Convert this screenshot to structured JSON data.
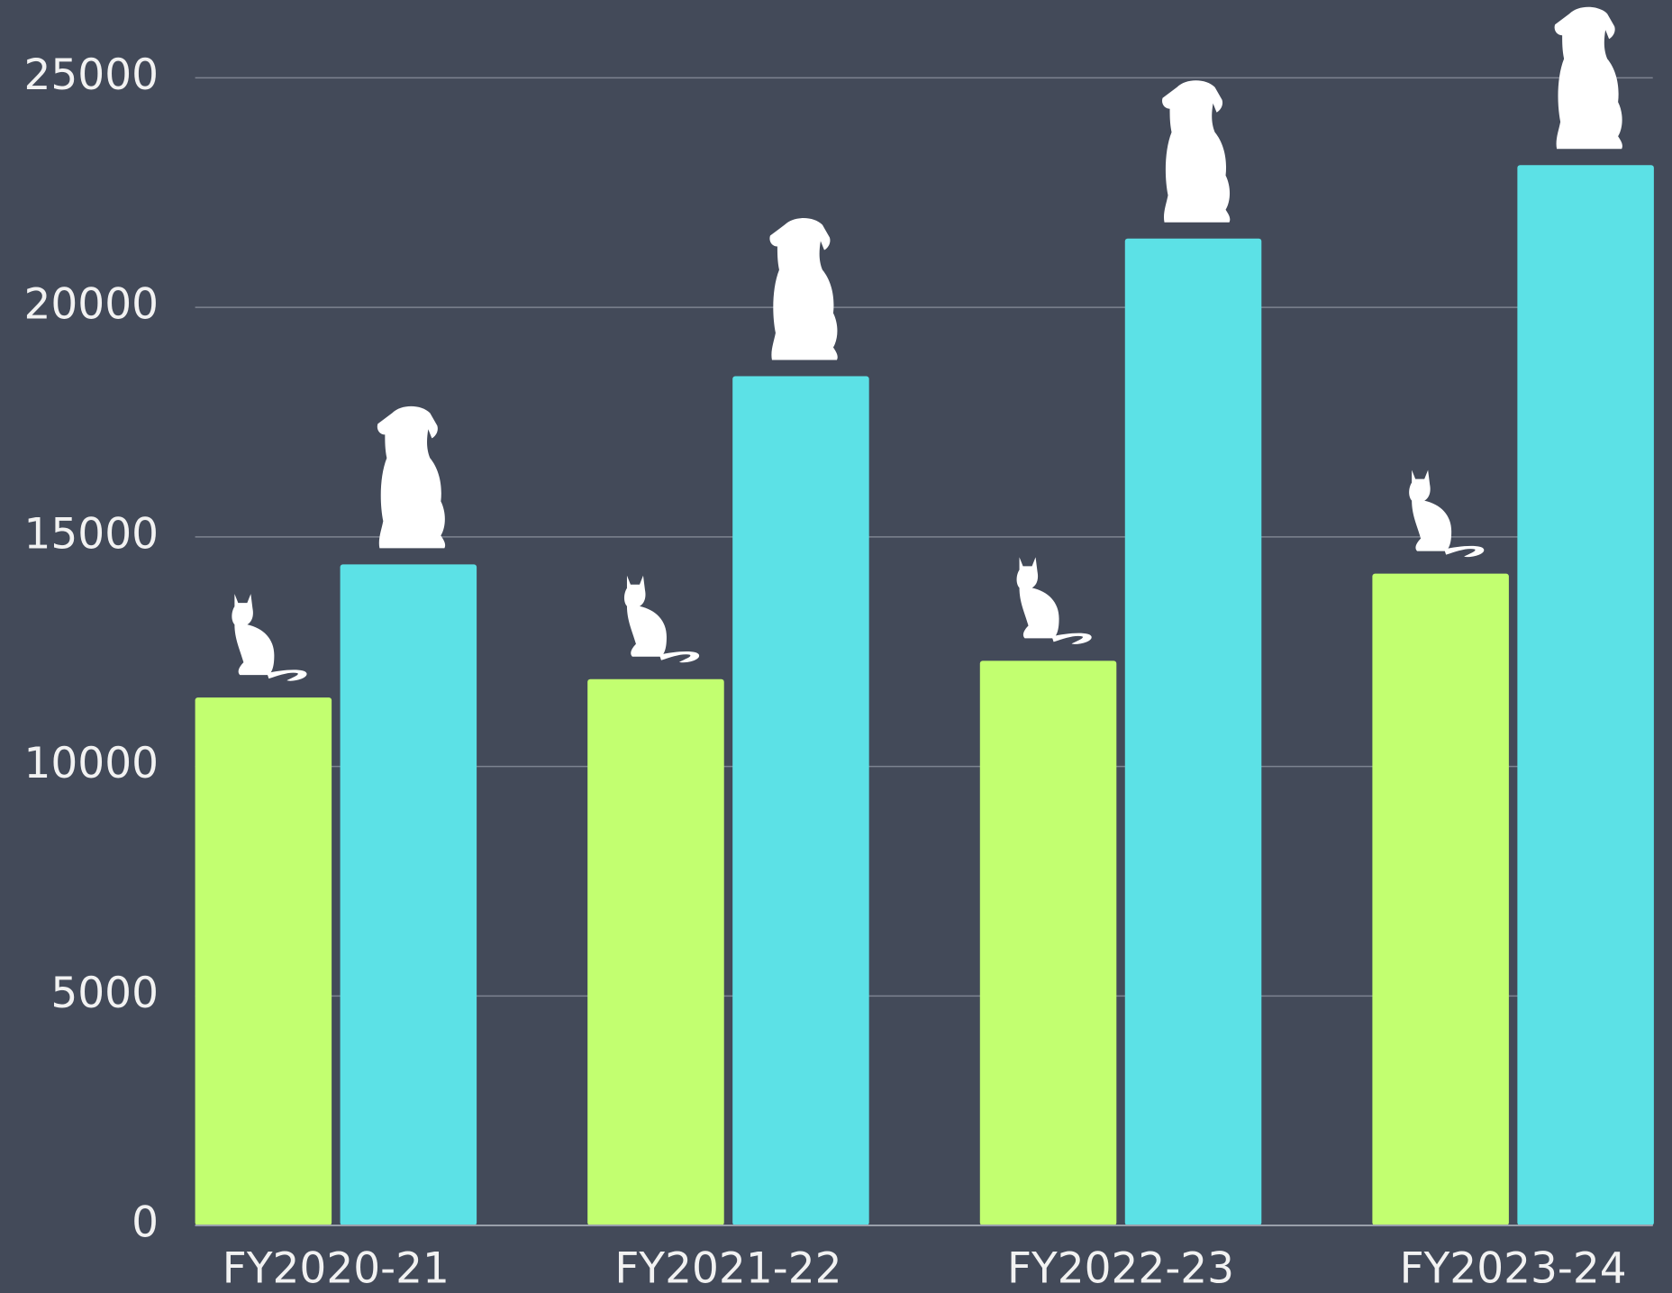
{
  "chart_data": {
    "type": "bar",
    "categories": [
      "FY2020-21",
      "FY2021-22",
      "FY2022-23",
      "FY2023-24"
    ],
    "series": [
      {
        "color": "#c2ff70",
        "values": [
          11500,
          11900,
          12300,
          14200
        ]
      },
      {
        "color": "#5ce1e6",
        "values": [
          14400,
          18500,
          21500,
          23100
        ]
      }
    ],
    "ylim": [
      0,
      25000
    ],
    "yticks": [
      0,
      5000,
      10000,
      15000,
      20000,
      25000
    ],
    "grid": true
  }
}
